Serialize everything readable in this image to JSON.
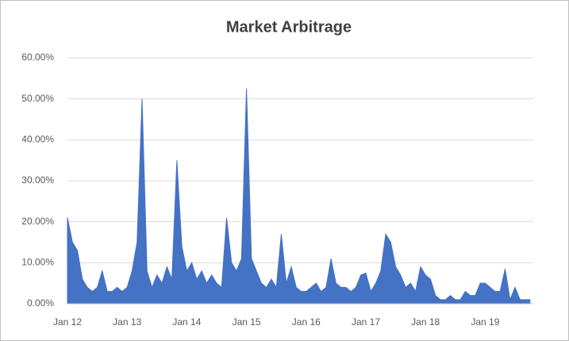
{
  "chart_data": {
    "type": "area",
    "title": "Market Arbitrage",
    "categories": [
      "Jan 12",
      null,
      null,
      null,
      null,
      null,
      null,
      null,
      null,
      null,
      null,
      null,
      "Jan 13",
      null,
      null,
      null,
      null,
      null,
      null,
      null,
      null,
      null,
      null,
      null,
      "Jan 14",
      null,
      null,
      null,
      null,
      null,
      null,
      null,
      null,
      null,
      null,
      null,
      "Jan 15",
      null,
      null,
      null,
      null,
      null,
      null,
      null,
      null,
      null,
      null,
      null,
      "Jan 16",
      null,
      null,
      null,
      null,
      null,
      null,
      null,
      null,
      null,
      null,
      null,
      "Jan 17",
      null,
      null,
      null,
      null,
      null,
      null,
      null,
      null,
      null,
      null,
      null,
      "Jan 18",
      null,
      null,
      null,
      null,
      null,
      null,
      null,
      null,
      null,
      null,
      null,
      "Jan 19",
      null,
      null,
      null,
      null,
      null,
      null,
      null,
      null,
      null
    ],
    "values": [
      21,
      15,
      13,
      6,
      4,
      3,
      4,
      8,
      3,
      3,
      4,
      3,
      4,
      8,
      15,
      50,
      8,
      4,
      7,
      5,
      9,
      6,
      35,
      14,
      8,
      10,
      6,
      8,
      5,
      7,
      5,
      4,
      21,
      10,
      8,
      11,
      52.5,
      11,
      8,
      5,
      4,
      6,
      4,
      17,
      5,
      9,
      4,
      3,
      3,
      4,
      5,
      3,
      4,
      11,
      5,
      4,
      4,
      3,
      4,
      7,
      7.5,
      3,
      5,
      8,
      17,
      15,
      9,
      7,
      4,
      5,
      3,
      9,
      7,
      6,
      2,
      1,
      1,
      2,
      1,
      1,
      3,
      2,
      2,
      5,
      5,
      4,
      3,
      3,
      8.5,
      1,
      4,
      1,
      1,
      1
    ],
    "color": "#4472c4",
    "ylim": [
      0,
      60
    ],
    "yticks": [
      {
        "value": 0,
        "label": "0.00%"
      },
      {
        "value": 10,
        "label": "10.00%"
      },
      {
        "value": 20,
        "label": "20.00%"
      },
      {
        "value": 30,
        "label": "30.00%"
      },
      {
        "value": 40,
        "label": "40.00%"
      },
      {
        "value": 50,
        "label": "50.00%"
      },
      {
        "value": 60,
        "label": "60.00%"
      }
    ],
    "grid": true
  }
}
